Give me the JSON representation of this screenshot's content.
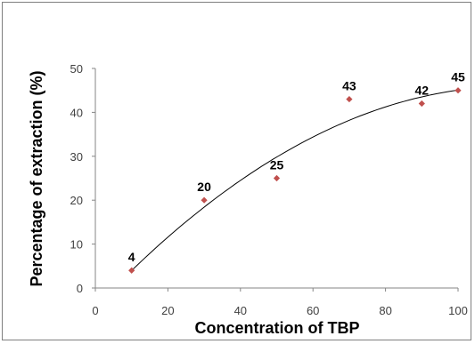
{
  "chart_data": {
    "type": "scatter",
    "title": "",
    "xlabel": "Concentration of TBP",
    "ylabel": "Percentage of extraction (%)",
    "xlim": [
      0,
      100
    ],
    "ylim": [
      0,
      50
    ],
    "x_ticks": [
      "0",
      "20",
      "40",
      "60",
      "80",
      "100"
    ],
    "y_ticks": [
      "0",
      "10",
      "20",
      "30",
      "40",
      "50"
    ],
    "grid": false,
    "legend": "none",
    "trendline": "polynomial",
    "marker": "diamond",
    "marker_color": "#c0504d",
    "series": [
      {
        "x": [
          10,
          30,
          50,
          70,
          90,
          100
        ],
        "values": [
          4,
          20,
          25,
          43,
          42,
          45
        ],
        "labels": [
          "4",
          "20",
          "25",
          "43",
          "42",
          "45"
        ]
      }
    ]
  }
}
